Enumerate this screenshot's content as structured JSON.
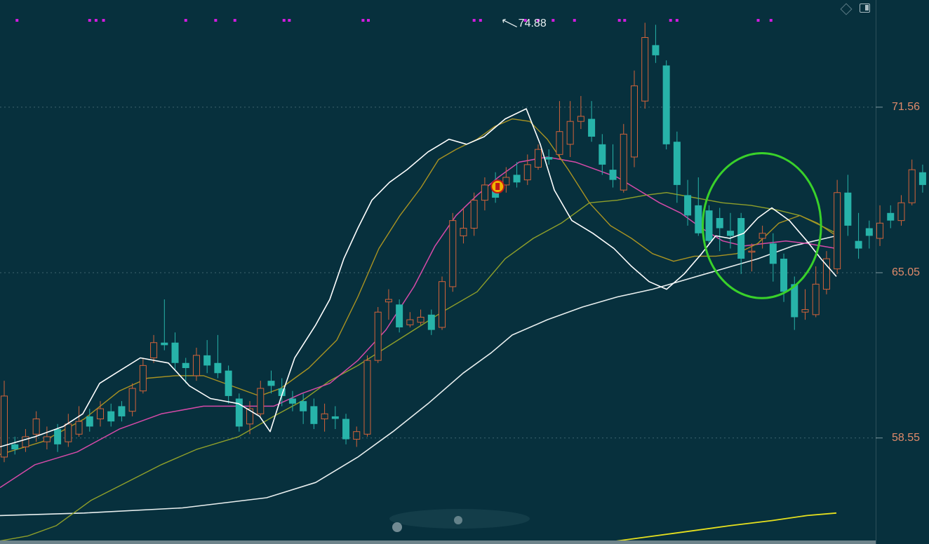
{
  "chart_data": {
    "type": "candlestick",
    "y_ticks": [
      {
        "value": 71.56,
        "label": "71.56"
      },
      {
        "value": 65.05,
        "label": "65.05"
      },
      {
        "value": 58.55,
        "label": "58.55"
      }
    ],
    "ylim": [
      53.8,
      75.5
    ],
    "grid": "dotted horizontal at tick values",
    "peak_annotation": {
      "value": 74.88,
      "label": "74.88"
    },
    "colors": {
      "up": "#d2633a",
      "down": "#27b3a9",
      "background": "#07303d",
      "ma_white": "#ffffff",
      "ma_olive": "#a99322",
      "ma_magenta": "#d64aa8",
      "ma_green": "#8f9f2a",
      "ma_long": "#e9efef",
      "ma_yellow": "#e6e01e",
      "circle": "#39d12a",
      "markers": "#d21ce0"
    },
    "candles": [
      [
        57.8,
        60.2,
        60.8,
        57.6
      ],
      [
        58.3,
        58.1,
        58.6,
        57.9
      ],
      [
        58.2,
        58.6,
        58.9,
        58.0
      ],
      [
        58.7,
        59.3,
        59.6,
        58.4
      ],
      [
        58.4,
        58.6,
        59.0,
        58.1
      ],
      [
        58.9,
        58.3,
        59.1,
        58.0
      ],
      [
        58.4,
        59.1,
        59.5,
        58.2
      ],
      [
        58.7,
        59.2,
        59.8,
        58.6
      ],
      [
        59.4,
        59.0,
        59.7,
        58.8
      ],
      [
        59.3,
        59.7,
        60.0,
        59.0
      ],
      [
        59.6,
        59.2,
        59.9,
        59.0
      ],
      [
        59.8,
        59.4,
        60.0,
        59.2
      ],
      [
        59.6,
        60.5,
        60.7,
        59.4
      ],
      [
        60.4,
        61.4,
        61.7,
        60.3
      ],
      [
        61.7,
        62.3,
        62.6,
        61.5
      ],
      [
        62.3,
        62.2,
        64.0,
        62.0
      ],
      [
        62.3,
        61.5,
        62.7,
        61.2
      ],
      [
        61.5,
        61.3,
        61.7,
        60.7
      ],
      [
        61.0,
        61.8,
        62.1,
        60.8
      ],
      [
        61.8,
        61.4,
        62.4,
        61.1
      ],
      [
        61.5,
        61.1,
        62.6,
        60.9
      ],
      [
        61.2,
        60.2,
        61.4,
        59.9
      ],
      [
        60.1,
        59.0,
        60.3,
        58.8
      ],
      [
        59.1,
        59.7,
        60.0,
        58.7
      ],
      [
        59.5,
        60.5,
        60.8,
        59.4
      ],
      [
        60.8,
        60.6,
        61.2,
        60.3
      ],
      [
        60.5,
        60.2,
        60.9,
        59.8
      ],
      [
        60.1,
        59.9,
        60.4,
        59.6
      ],
      [
        60.0,
        59.6,
        60.3,
        59.1
      ],
      [
        59.8,
        59.1,
        60.1,
        58.9
      ],
      [
        59.3,
        59.5,
        59.9,
        58.8
      ],
      [
        59.4,
        59.3,
        59.8,
        58.9
      ],
      [
        59.3,
        58.5,
        59.5,
        58.3
      ],
      [
        58.5,
        58.8,
        59.0,
        58.2
      ],
      [
        58.7,
        61.6,
        61.8,
        58.6
      ],
      [
        61.6,
        63.5,
        63.7,
        61.5
      ],
      [
        63.9,
        64.0,
        64.4,
        63.2
      ],
      [
        63.8,
        62.9,
        64.0,
        62.7
      ],
      [
        63.0,
        63.2,
        63.5,
        62.9
      ],
      [
        63.1,
        63.3,
        63.6,
        63.0
      ],
      [
        63.4,
        62.8,
        63.6,
        62.6
      ],
      [
        62.9,
        64.7,
        64.9,
        62.8
      ],
      [
        64.5,
        67.1,
        67.4,
        64.3
      ],
      [
        66.5,
        66.8,
        67.6,
        66.2
      ],
      [
        66.8,
        67.9,
        68.2,
        66.5
      ],
      [
        67.9,
        68.5,
        68.8,
        67.5
      ],
      [
        68.6,
        68.0,
        69.0,
        67.8
      ],
      [
        68.5,
        68.8,
        69.2,
        68.2
      ],
      [
        68.9,
        68.6,
        69.4,
        68.4
      ],
      [
        68.7,
        69.3,
        69.7,
        68.5
      ],
      [
        69.2,
        69.9,
        70.1,
        69.1
      ],
      [
        69.6,
        69.5,
        69.9,
        69.3
      ],
      [
        69.7,
        70.6,
        71.8,
        69.5
      ],
      [
        70.1,
        71.0,
        71.8,
        69.6
      ],
      [
        71.0,
        71.2,
        72.0,
        70.7
      ],
      [
        71.1,
        70.4,
        71.8,
        70.2
      ],
      [
        70.1,
        69.3,
        70.5,
        68.9
      ],
      [
        69.1,
        68.7,
        70.1,
        68.4
      ],
      [
        68.3,
        70.5,
        70.9,
        68.2
      ],
      [
        69.6,
        72.4,
        73.0,
        69.2
      ],
      [
        71.8,
        74.3,
        74.88,
        71.5
      ],
      [
        74.0,
        73.6,
        74.8,
        73.3
      ],
      [
        73.2,
        70.1,
        73.4,
        69.9
      ],
      [
        70.2,
        68.5,
        70.6,
        67.8
      ],
      [
        68.1,
        67.3,
        68.7,
        66.9
      ],
      [
        67.7,
        66.6,
        68.8,
        66.5
      ],
      [
        67.5,
        66.3,
        67.7,
        66.2
      ],
      [
        67.2,
        66.8,
        67.6,
        65.9
      ],
      [
        66.7,
        66.5,
        67.4,
        66.0
      ],
      [
        67.2,
        65.6,
        67.4,
        65.0
      ],
      [
        65.9,
        65.9,
        66.2,
        65.1
      ],
      [
        66.4,
        66.6,
        66.9,
        66.0
      ],
      [
        66.2,
        65.4,
        66.6,
        64.7
      ],
      [
        65.6,
        64.3,
        65.8,
        63.9
      ],
      [
        64.6,
        63.3,
        64.9,
        62.8
      ],
      [
        63.5,
        63.6,
        64.4,
        63.2
      ],
      [
        63.4,
        64.6,
        65.3,
        63.3
      ],
      [
        64.4,
        65.6,
        65.9,
        64.2
      ],
      [
        65.2,
        68.2,
        68.7,
        65.0
      ],
      [
        68.2,
        66.9,
        68.9,
        66.5
      ],
      [
        66.3,
        66.0,
        67.4,
        65.6
      ],
      [
        66.8,
        66.5,
        67.1,
        66.0
      ],
      [
        66.4,
        67.0,
        67.7,
        66.1
      ],
      [
        67.4,
        67.1,
        67.7,
        66.8
      ],
      [
        67.1,
        67.8,
        68.1,
        66.9
      ],
      [
        67.8,
        69.1,
        69.5,
        67.7
      ],
      [
        69.0,
        68.5,
        69.3,
        68.2
      ],
      [
        68.5,
        67.6,
        68.7,
        67.3
      ],
      [
        67.8,
        66.8,
        68.0,
        66.6
      ],
      [
        65.9,
        65.0,
        66.2,
        64.7
      ],
      [
        65.7,
        64.4,
        65.8,
        64.2
      ],
      [
        64.5,
        64.9,
        65.3,
        64.4
      ],
      [
        65.5,
        63.2,
        65.6,
        63.0
      ]
    ],
    "ma_white": [
      [
        0,
        58.2
      ],
      [
        50,
        58.6
      ],
      [
        90,
        59.0
      ],
      [
        118,
        59.5
      ],
      [
        142,
        60.7
      ],
      [
        165,
        61.1
      ],
      [
        200,
        61.7
      ],
      [
        240,
        61.5
      ],
      [
        270,
        60.6
      ],
      [
        300,
        60.1
      ],
      [
        340,
        59.9
      ],
      [
        370,
        59.4
      ],
      [
        385,
        58.8
      ],
      [
        400,
        60.1
      ],
      [
        420,
        61.7
      ],
      [
        450,
        63.0
      ],
      [
        470,
        64.0
      ],
      [
        490,
        65.6
      ],
      [
        510,
        66.8
      ],
      [
        530,
        67.9
      ],
      [
        555,
        68.6
      ],
      [
        580,
        69.1
      ],
      [
        610,
        69.8
      ],
      [
        640,
        70.3
      ],
      [
        665,
        70.1
      ],
      [
        690,
        70.4
      ],
      [
        720,
        71.1
      ],
      [
        750,
        71.5
      ],
      [
        770,
        70.1
      ],
      [
        790,
        68.3
      ],
      [
        815,
        67.1
      ],
      [
        845,
        66.6
      ],
      [
        875,
        66.0
      ],
      [
        900,
        65.3
      ],
      [
        925,
        64.7
      ],
      [
        950,
        64.4
      ],
      [
        975,
        65.0
      ],
      [
        1000,
        65.8
      ],
      [
        1020,
        66.5
      ],
      [
        1040,
        66.4
      ],
      [
        1060,
        66.6
      ],
      [
        1080,
        67.2
      ],
      [
        1100,
        67.6
      ],
      [
        1125,
        67.1
      ],
      [
        1150,
        66.3
      ],
      [
        1170,
        65.6
      ],
      [
        1192,
        64.9
      ]
    ],
    "ma_olive": [
      [
        0,
        57.9
      ],
      [
        60,
        58.4
      ],
      [
        120,
        59.3
      ],
      [
        170,
        60.4
      ],
      [
        210,
        60.9
      ],
      [
        250,
        61.0
      ],
      [
        290,
        61.0
      ],
      [
        330,
        60.6
      ],
      [
        370,
        60.2
      ],
      [
        400,
        60.5
      ],
      [
        440,
        61.3
      ],
      [
        480,
        62.4
      ],
      [
        510,
        64.1
      ],
      [
        540,
        66.0
      ],
      [
        570,
        67.3
      ],
      [
        600,
        68.4
      ],
      [
        625,
        69.5
      ],
      [
        650,
        69.9
      ],
      [
        680,
        70.3
      ],
      [
        705,
        70.8
      ],
      [
        730,
        71.1
      ],
      [
        755,
        71.0
      ],
      [
        780,
        70.3
      ],
      [
        810,
        69.1
      ],
      [
        840,
        67.8
      ],
      [
        870,
        66.9
      ],
      [
        900,
        66.4
      ],
      [
        930,
        65.8
      ],
      [
        960,
        65.5
      ],
      [
        990,
        65.7
      ],
      [
        1020,
        65.7
      ],
      [
        1050,
        65.8
      ],
      [
        1080,
        66.2
      ],
      [
        1110,
        67.0
      ],
      [
        1140,
        67.3
      ],
      [
        1165,
        67.0
      ],
      [
        1192,
        66.5
      ]
    ],
    "ma_magenta": [
      [
        0,
        56.6
      ],
      [
        50,
        57.5
      ],
      [
        110,
        58.0
      ],
      [
        170,
        58.9
      ],
      [
        230,
        59.5
      ],
      [
        290,
        59.8
      ],
      [
        340,
        59.8
      ],
      [
        390,
        59.8
      ],
      [
        430,
        60.3
      ],
      [
        470,
        60.7
      ],
      [
        510,
        61.6
      ],
      [
        550,
        62.8
      ],
      [
        590,
        64.5
      ],
      [
        620,
        66.1
      ],
      [
        650,
        67.3
      ],
      [
        680,
        68.1
      ],
      [
        710,
        68.8
      ],
      [
        740,
        69.4
      ],
      [
        780,
        69.6
      ],
      [
        820,
        69.4
      ],
      [
        850,
        69.1
      ],
      [
        880,
        68.8
      ],
      [
        910,
        68.3
      ],
      [
        940,
        67.8
      ],
      [
        970,
        67.4
      ],
      [
        1000,
        66.8
      ],
      [
        1030,
        66.3
      ],
      [
        1060,
        66.1
      ],
      [
        1090,
        66.2
      ],
      [
        1120,
        66.3
      ],
      [
        1150,
        66.2
      ],
      [
        1192,
        66.0
      ]
    ],
    "ma_green": [
      [
        0,
        54.5
      ],
      [
        40,
        54.7
      ],
      [
        80,
        55.1
      ],
      [
        130,
        56.1
      ],
      [
        180,
        56.8
      ],
      [
        230,
        57.5
      ],
      [
        280,
        58.1
      ],
      [
        340,
        58.6
      ],
      [
        390,
        59.4
      ],
      [
        430,
        60.0
      ],
      [
        470,
        60.8
      ],
      [
        510,
        61.4
      ],
      [
        550,
        62.1
      ],
      [
        590,
        62.8
      ],
      [
        630,
        63.5
      ],
      [
        680,
        64.3
      ],
      [
        720,
        65.6
      ],
      [
        760,
        66.4
      ],
      [
        800,
        67.0
      ],
      [
        840,
        67.8
      ],
      [
        880,
        67.9
      ],
      [
        920,
        68.1
      ],
      [
        950,
        68.2
      ],
      [
        990,
        68.0
      ],
      [
        1030,
        67.8
      ],
      [
        1070,
        67.7
      ],
      [
        1110,
        67.5
      ],
      [
        1140,
        67.3
      ],
      [
        1170,
        66.9
      ],
      [
        1192,
        66.6
      ]
    ],
    "ma_long": [
      [
        0,
        55.5
      ],
      [
        120,
        55.6
      ],
      [
        260,
        55.8
      ],
      [
        380,
        56.2
      ],
      [
        450,
        56.8
      ],
      [
        510,
        57.8
      ],
      [
        560,
        58.8
      ],
      [
        610,
        59.9
      ],
      [
        660,
        61.1
      ],
      [
        700,
        61.9
      ],
      [
        730,
        62.6
      ],
      [
        780,
        63.2
      ],
      [
        830,
        63.7
      ],
      [
        880,
        64.1
      ],
      [
        930,
        64.4
      ],
      [
        980,
        64.8
      ],
      [
        1030,
        65.2
      ],
      [
        1080,
        65.6
      ],
      [
        1130,
        66.1
      ],
      [
        1192,
        66.5
      ]
    ],
    "ma_yellow": [
      [
        730,
        53.8
      ],
      [
        800,
        54.2
      ],
      [
        880,
        54.5
      ],
      [
        960,
        54.8
      ],
      [
        1040,
        55.1
      ],
      [
        1100,
        55.3
      ],
      [
        1150,
        55.5
      ],
      [
        1192,
        55.6
      ]
    ],
    "highlight_circle": {
      "cx_index": 72.0,
      "cy_value": 66.9,
      "rx_index": 6.0,
      "ry_value": 2.85
    },
    "signal_markers": [
      1.2,
      8.0,
      8.6,
      9.3,
      17.0,
      19.8,
      21.6,
      26.2,
      26.7,
      33.6,
      34.1,
      44.0,
      44.6,
      48.8,
      50.0,
      51.4,
      53.4,
      57.6,
      58.1,
      62.4,
      63.0,
      70.6,
      71.8
    ]
  }
}
